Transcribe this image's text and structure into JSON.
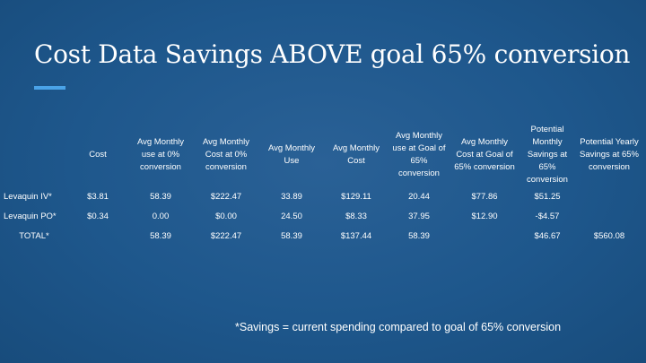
{
  "slide": {
    "title": "Cost Data  Savings ABOVE goal 65% conversion",
    "footnote": "*Savings = current spending compared to goal of 65% conversion"
  },
  "table": {
    "headers": [
      "",
      "Cost",
      "Avg Monthly use at 0% conversion",
      "Avg Monthly Cost at 0% conversion",
      "Avg Monthly Use",
      "Avg Monthly Cost",
      "Avg Monthly use at Goal of 65% conversion",
      "Avg Monthly Cost at Goal of 65% conversion",
      "Potential Monthly Savings at 65% conversion",
      "Potential Yearly Savings at 65% conversion"
    ],
    "rows": [
      [
        "Levaquin IV*",
        "$3.81",
        "58.39",
        "$222.47",
        "33.89",
        "$129.11",
        "20.44",
        "$77.86",
        "$51.25",
        ""
      ],
      [
        "Levaquin PO*",
        "$0.34",
        "0.00",
        "$0.00",
        "24.50",
        "$8.33",
        "37.95",
        "$12.90",
        "-$4.57",
        ""
      ],
      [
        "TOTAL*",
        "",
        "58.39",
        "$222.47",
        "58.39",
        "$137.44",
        "58.39",
        "",
        "$46.67",
        "$560.08"
      ]
    ]
  },
  "colors": {
    "background": "#1c5589",
    "accent_bar": "#4aa3e8",
    "text": "#ffffff"
  }
}
